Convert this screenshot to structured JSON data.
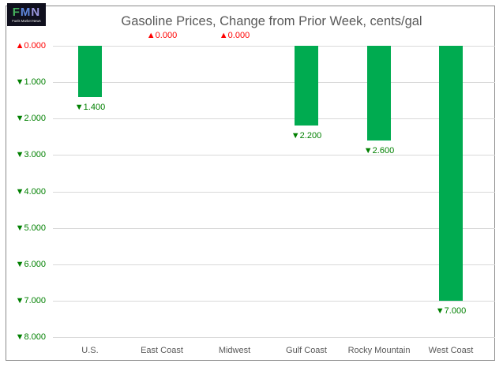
{
  "logo": {
    "letters": [
      {
        "char": "F",
        "color": "#46b45e"
      },
      {
        "char": "M",
        "color": "#5f87dd"
      },
      {
        "char": "N",
        "color": "#9d99e2"
      }
    ],
    "subtext": "Fuels Market News"
  },
  "chart_data": {
    "type": "bar",
    "title": "Gasoline Prices, Change from Prior Week, cents/gal",
    "categories": [
      "U.S.",
      "East Coast",
      "Midwest",
      "Gulf Coast",
      "Rocky Mountain",
      "West Coast"
    ],
    "values": [
      -1.4,
      0,
      0,
      -2.2,
      -2.6,
      -7
    ],
    "data_labels": [
      "▼1.400",
      "▲0.000",
      "▲0.000",
      "▼2.200",
      "▼2.600",
      "▼7.000"
    ],
    "y_axis": {
      "tick_values": [
        0,
        -1,
        -2,
        -3,
        -4,
        -5,
        -6,
        -7,
        -8
      ],
      "tick_labels": [
        "▲0.000",
        "▼1.000",
        "▼2.000",
        "▼3.000",
        "▼4.000",
        "▼5.000",
        "▼6.000",
        "▼7.000",
        "▼8.000"
      ]
    },
    "ylim": [
      0,
      -8
    ],
    "grid": true,
    "legend": false,
    "colors": {
      "bar": "#00ab50",
      "up_label": "#ff0000",
      "down_label": "#008000",
      "title": "#595959",
      "category": "#595959",
      "gridline": "#d9d9d9",
      "border": "#8a8a8a"
    }
  }
}
